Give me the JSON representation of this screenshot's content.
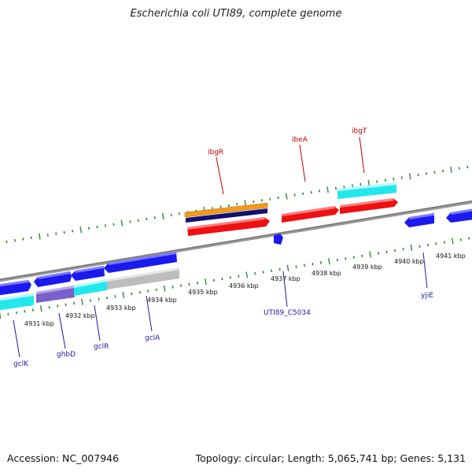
{
  "title": "Escherichia coli UTI89, complete genome",
  "footer": {
    "accession": "Accession: NC_007946",
    "summary": "Topology: circular; Length: 5,065,741 bp; Genes: 5,131"
  },
  "colors": {
    "backbone": "#808080",
    "tick": "#2e8b2e",
    "red": "#ee1111",
    "blue": "#1a1aee",
    "orange": "#f39a1c",
    "navy": "#101070",
    "cyan": "#22e8ee",
    "purple": "#7a60cc",
    "gray": "#bdbdbd",
    "label_top": "#c00000",
    "label_bottom": "#1a1aa6"
  },
  "scale_labels": [
    "4931 kbp",
    "4932 kbp",
    "4933 kbp",
    "4934 kbp",
    "4935 kbp",
    "4936 kbp",
    "4937 kbp",
    "4938 kbp",
    "4939 kbp",
    "4940 kbp",
    "4941 kbp"
  ],
  "genes_top": [
    {
      "name": "ibgR",
      "color": "label_top"
    },
    {
      "name": "ibeA",
      "color": "label_top"
    },
    {
      "name": "ibgT",
      "color": "label_top"
    }
  ],
  "genes_bottom": [
    {
      "name": "gclK"
    },
    {
      "name": "ghbD"
    },
    {
      "name": "gclR"
    },
    {
      "name": "gclA"
    },
    {
      "name": "UTI89_C5034"
    },
    {
      "name": "yjiE"
    }
  ]
}
